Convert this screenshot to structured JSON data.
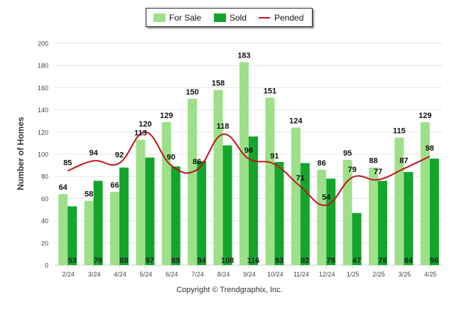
{
  "chart_data": {
    "type": "bar",
    "title": "",
    "xlabel": "",
    "ylabel": "Number of Homes",
    "ylim": [
      0,
      200
    ],
    "yticks": [
      0,
      20,
      40,
      60,
      80,
      100,
      120,
      140,
      160,
      180,
      200
    ],
    "grid": true,
    "legend_position": "top-center",
    "categories": [
      "2/24",
      "3/24",
      "4/24",
      "5/24",
      "6/24",
      "7/24",
      "8/24",
      "9/24",
      "10/24",
      "11/24",
      "12/24",
      "1/25",
      "2/25",
      "3/25",
      "4/25"
    ],
    "series": [
      {
        "name": "For Sale",
        "kind": "bar",
        "color": "#9ee08a",
        "values": [
          64,
          58,
          66,
          113,
          129,
          150,
          158,
          183,
          151,
          124,
          86,
          95,
          88,
          115,
          129
        ]
      },
      {
        "name": "Sold",
        "kind": "bar",
        "color": "#14a52d",
        "values": [
          53,
          76,
          88,
          97,
          89,
          94,
          108,
          116,
          93,
          92,
          78,
          47,
          76,
          84,
          96
        ]
      },
      {
        "name": "Pended",
        "kind": "line",
        "color": "#c0141e",
        "values": [
          85,
          94,
          92,
          120,
          90,
          86,
          118,
          96,
          91,
          71,
          54,
          79,
          77,
          87,
          98
        ]
      }
    ]
  },
  "footer": {
    "copyright": "Copyright © Trendgraphix, Inc."
  }
}
